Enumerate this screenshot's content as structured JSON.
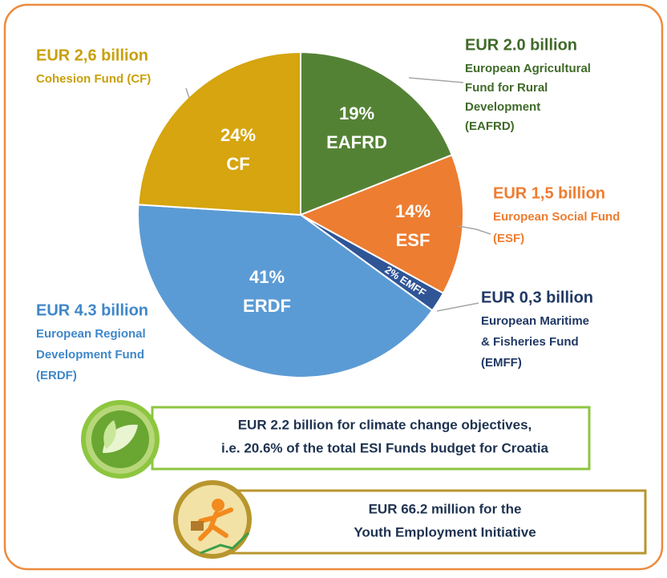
{
  "chart_data": {
    "type": "pie",
    "categories": [
      "EAFRD",
      "ESF",
      "EMFF",
      "ERDF",
      "CF"
    ],
    "values": [
      19,
      14,
      2,
      41,
      24
    ],
    "value_labels": [
      "19%",
      "14%",
      "2%",
      "41%",
      "24%"
    ],
    "colors": [
      "#548235",
      "#ed7d31",
      "#2f5597",
      "#5b9bd5",
      "#d6a50f"
    ],
    "annotations": [
      {
        "amount": "EUR 2.0 billion",
        "lines": [
          "European Agricultural",
          "Fund for Rural",
          "Development",
          "(EAFRD)"
        ]
      },
      {
        "amount": "EUR 1,5 billion",
        "lines": [
          "European Social Fund",
          "(ESF)"
        ]
      },
      {
        "amount": "EUR 0,3 billion",
        "lines": [
          "European Maritime",
          "& Fisheries Fund",
          "(EMFF)"
        ]
      },
      {
        "amount": "EUR 4.3 billion",
        "lines": [
          "European Regional",
          "Development Fund",
          "(ERDF)"
        ]
      },
      {
        "amount": "EUR 2,6 billion",
        "lines": [
          "Cohesion Fund (CF)"
        ]
      }
    ],
    "notes": [
      {
        "lines": [
          "EUR 2.2 billion for climate change objectives,",
          "i.e. 20.6% of the total ESI Funds budget for Croatia"
        ]
      },
      {
        "lines": [
          "EUR 66.2 million for the",
          "Youth Employment Initiative"
        ]
      }
    ]
  }
}
